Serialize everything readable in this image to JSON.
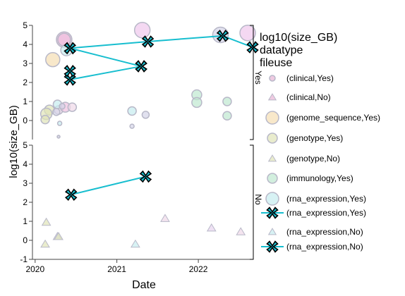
{
  "chart_data": {
    "type": "scatter",
    "xlabel": "Date",
    "ylabel": "log10(size_GB)",
    "x_ticks": [
      {
        "date": "2020-01-01",
        "label": "2020"
      },
      {
        "date": "2021-01-01",
        "label": "2021"
      },
      {
        "date": "2022-01-01",
        "label": "2022"
      }
    ],
    "x_range": [
      "2019-12-20",
      "2022-09-01"
    ],
    "legend_title": [
      "log10(size_GB)",
      "datatype",
      "fileuse"
    ],
    "legend_groups": [
      {
        "label": "Yes",
        "items": [
          {
            "label": "(clinical,Yes)",
            "marker": "circle",
            "color": "#e8b4d4",
            "size": "small"
          },
          {
            "label": "(clinical,No)",
            "marker": "triangle",
            "color": "#e8b4d4"
          },
          {
            "label": "(genome_sequence,Yes)",
            "marker": "circle",
            "color": "#f5deb3",
            "size": "large"
          },
          {
            "label": "(genotype,Yes)",
            "marker": "circle",
            "color": "#e0e4b8",
            "size": "medium"
          }
        ]
      },
      {
        "label": "No",
        "items": [
          {
            "label": "(genotype,No)",
            "marker": "triangle",
            "color": "#e0e4b8"
          },
          {
            "label": "(immunology,Yes)",
            "marker": "circle",
            "color": "#bfe8d0",
            "size": "medium"
          },
          {
            "label": "(rna_expression,Yes)",
            "marker": "circle",
            "color": "#c6ecf0",
            "size": "large"
          },
          {
            "label": "(rna_expression,Yes)",
            "marker": "x-line",
            "color": "#17becf"
          },
          {
            "label": "(rna_expression,No)",
            "marker": "triangle",
            "color": "#c6ecf0"
          },
          {
            "label": "(rna_expression,No)",
            "marker": "x-line",
            "color": "#17becf"
          }
        ]
      }
    ],
    "panels": [
      {
        "facet": "Yes",
        "y_range": [
          -1,
          5
        ],
        "y_ticks": [
          0,
          1,
          2,
          3,
          4,
          5
        ],
        "circles": [
          {
            "date": "2020-05-10",
            "y": 4.25,
            "r": 11,
            "color": "#e8b4d4"
          },
          {
            "date": "2020-05-10",
            "y": 4.25,
            "r": 9,
            "color": "#f0c0e0"
          },
          {
            "date": "2021-04-25",
            "y": 4.75,
            "r": 11,
            "color": "#f0c8ec"
          },
          {
            "date": "2022-04-10",
            "y": 4.5,
            "r": 11,
            "color": "#d4d4e8"
          },
          {
            "date": "2022-08-10",
            "y": 4.6,
            "r": 11,
            "color": "#f0c8ec"
          },
          {
            "date": "2020-03-20",
            "y": 3.2,
            "r": 10,
            "color": "#f5deb3"
          },
          {
            "date": "2020-05-20",
            "y": 3.7,
            "r": 8,
            "color": "#c6ecf0"
          },
          {
            "date": "2020-03-05",
            "y": 0.55,
            "r": 7,
            "color": "#e0e4b8"
          },
          {
            "date": "2020-02-20",
            "y": 0.35,
            "r": 8,
            "color": "#e0e4b8"
          },
          {
            "date": "2020-02-15",
            "y": 0.05,
            "r": 6,
            "color": "#e0e4b8"
          },
          {
            "date": "2020-04-15",
            "y": 0.55,
            "r": 6,
            "color": "#f0d8e8"
          },
          {
            "date": "2020-04-10",
            "y": 0.85,
            "r": 6,
            "color": "#c6ecf0"
          },
          {
            "date": "2020-04-05",
            "y": 0.45,
            "r": 5,
            "color": "#d4d4e8"
          },
          {
            "date": "2020-05-15",
            "y": 0.7,
            "r": 7,
            "color": "#f0c0e0"
          },
          {
            "date": "2020-06-15",
            "y": 0.7,
            "r": 6,
            "color": "#f0d8e8"
          },
          {
            "date": "2020-05-01",
            "y": 0.75,
            "r": 4,
            "color": "#d4d4e8"
          },
          {
            "date": "2020-04-20",
            "y": -0.15,
            "r": 3,
            "color": "#c6ecf0"
          },
          {
            "date": "2020-04-15",
            "y": -0.85,
            "r": 2,
            "color": "#c8c8d8"
          },
          {
            "date": "2021-03-10",
            "y": 0.5,
            "r": 6,
            "color": "#c6ecf0"
          },
          {
            "date": "2021-03-10",
            "y": -0.3,
            "r": 3,
            "color": "#d4d4e8"
          },
          {
            "date": "2021-05-10",
            "y": 0.3,
            "r": 5,
            "color": "#d4d4e8"
          },
          {
            "date": "2021-12-25",
            "y": 1.35,
            "r": 7,
            "color": "#bfe8d0"
          },
          {
            "date": "2021-12-25",
            "y": 0.95,
            "r": 7,
            "color": "#bfe8d0"
          },
          {
            "date": "2022-05-10",
            "y": 1.0,
            "r": 6,
            "color": "#bfe8d0"
          },
          {
            "date": "2022-05-10",
            "y": 0.25,
            "r": 6,
            "color": "#bfe8d0"
          }
        ],
        "x_series": [
          {
            "name": "(rna_expression,Yes)",
            "points": [
              {
                "date": "2020-06-05",
                "y": 3.8
              },
              {
                "date": "2021-05-20",
                "y": 4.15
              },
              {
                "date": "2022-04-20",
                "y": 4.45
              },
              {
                "date": "2022-09-01",
                "y": 3.85
              }
            ]
          },
          {
            "name": "(rna_expression,Yes)",
            "points": [
              {
                "date": "2020-06-05",
                "y": 3.8
              },
              {
                "date": "2021-04-20",
                "y": 2.85
              }
            ]
          },
          {
            "name": "(rna_expression,Yes)",
            "points": [
              {
                "date": "2020-06-05",
                "y": 2.15
              },
              {
                "date": "2021-04-20",
                "y": 2.85
              }
            ]
          },
          {
            "name": "(rna_expression,Yes)",
            "points": [
              {
                "date": "2020-06-05",
                "y": 2.6
              }
            ]
          }
        ]
      },
      {
        "facet": "No",
        "y_range": [
          -1,
          5
        ],
        "y_ticks": [
          -1,
          0,
          1,
          2,
          3,
          4,
          5
        ],
        "triangles": [
          {
            "date": "2020-02-20",
            "y": 0.95,
            "color": "#e0e4b8"
          },
          {
            "date": "2020-02-15",
            "y": -0.2,
            "color": "#e0e4b8"
          },
          {
            "date": "2020-04-10",
            "y": 0.2,
            "color": "#d4d4e8"
          },
          {
            "date": "2020-04-15",
            "y": 0.2,
            "color": "#e0e4b8"
          },
          {
            "date": "2021-03-25",
            "y": -0.2,
            "color": "#c6ecf0"
          },
          {
            "date": "2021-08-05",
            "y": 1.15,
            "color": "#f0d8e8"
          },
          {
            "date": "2022-03-01",
            "y": 0.65,
            "color": "#e8d4f0"
          },
          {
            "date": "2022-07-10",
            "y": 0.45,
            "color": "#f0d8e8"
          }
        ],
        "x_series": [
          {
            "name": "(rna_expression,No)",
            "points": [
              {
                "date": "2020-06-10",
                "y": 2.4
              },
              {
                "date": "2021-05-10",
                "y": 3.35
              }
            ]
          }
        ]
      }
    ]
  }
}
